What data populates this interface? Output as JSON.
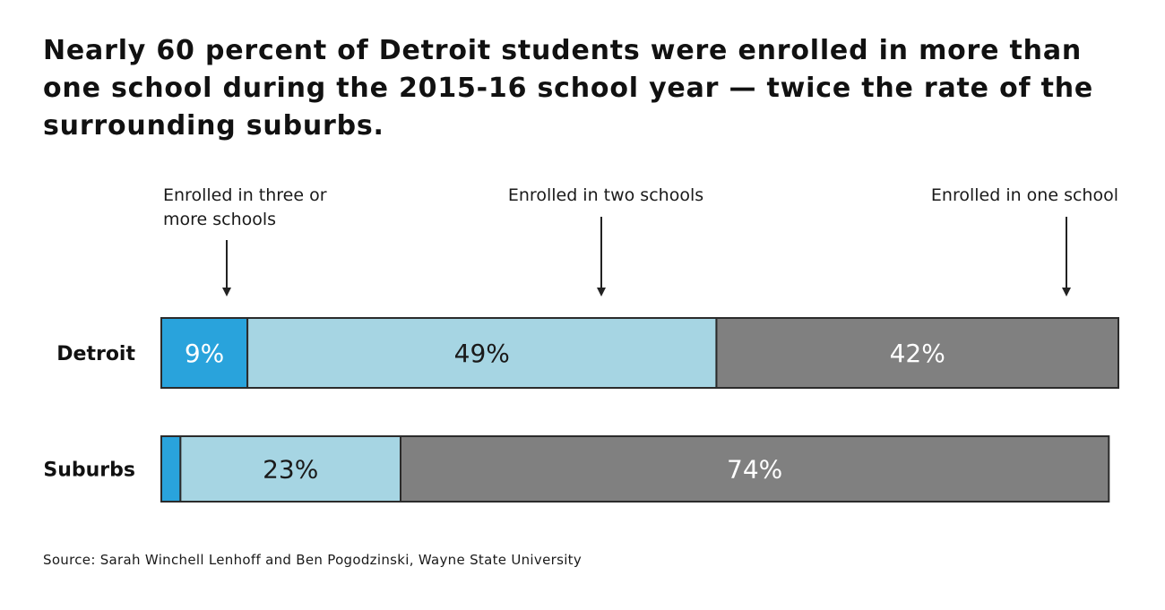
{
  "title": "Nearly 60 percent of Detroit students were enrolled in more than one school during the 2015-16 school year — twice the rate of the surrounding suburbs.",
  "source": "Source: Sarah Winchell Lenhoff and Ben Pogodzinski, Wayne State University",
  "chart_data": {
    "type": "bar",
    "orientation": "horizontal",
    "stacked": true,
    "percent_of_total": true,
    "categories": [
      "Detroit",
      "Suburbs"
    ],
    "series": [
      {
        "name": "Enrolled in three or more schools",
        "values": [
          9,
          2
        ],
        "labels": [
          "9%",
          ""
        ],
        "color": "#29a3dc",
        "label_color": "#ffffff"
      },
      {
        "name": "Enrolled in two schools",
        "values": [
          49,
          23
        ],
        "labels": [
          "49%",
          "23%"
        ],
        "color": "#a6d5e3",
        "label_color": "#1a1a1a"
      },
      {
        "name": "Enrolled in one school",
        "values": [
          42,
          74
        ],
        "labels": [
          "42%",
          "74%"
        ],
        "color": "#808080",
        "label_color": "#ffffff"
      }
    ],
    "xlim": [
      0,
      100
    ],
    "legend": "top, arrow callouts",
    "grid": false
  }
}
